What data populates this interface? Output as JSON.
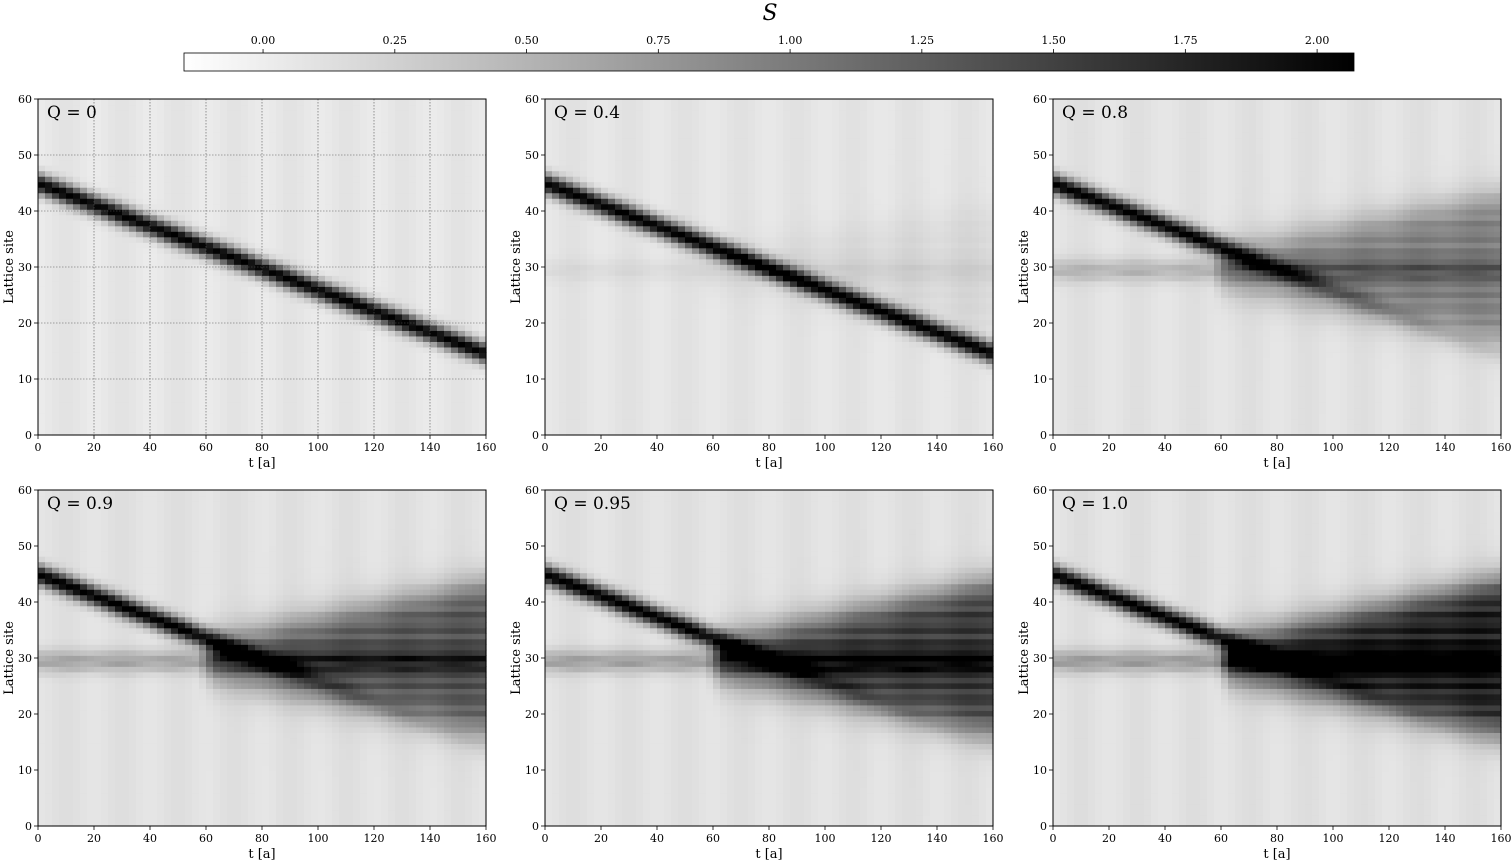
{
  "colorbar": {
    "label": "S",
    "ticks": [
      "0.00",
      "0.25",
      "0.50",
      "0.75",
      "1.00",
      "1.25",
      "1.50",
      "1.75",
      "2.00"
    ],
    "range": [
      -0.15,
      2.07
    ],
    "colors": [
      "#ffffff",
      "#000000"
    ]
  },
  "chart_data": [
    {
      "type": "heatmap",
      "title": "Q = 0",
      "q": 0,
      "xlabel": "t [a]",
      "ylabel": "Lattice site",
      "xlim": [
        0,
        160
      ],
      "ylim": [
        0,
        60
      ],
      "xticks": [
        "0",
        "20",
        "40",
        "60",
        "80",
        "100",
        "120",
        "140",
        "160"
      ],
      "yticks": [
        "0",
        "10",
        "20",
        "30",
        "40",
        "50",
        "60"
      ],
      "grid": true,
      "features": {
        "wavepacket_start_site": 45,
        "wavepacket_end_site": 15,
        "wavepacket_peak_S": 2.0,
        "impurity_site": 30
      }
    },
    {
      "type": "heatmap",
      "title": "Q = 0.4",
      "q": 0.4,
      "xlabel": "t [a]",
      "ylabel": "Lattice site",
      "xlim": [
        0,
        160
      ],
      "ylim": [
        0,
        60
      ],
      "xticks": [
        "0",
        "20",
        "40",
        "60",
        "80",
        "100",
        "120",
        "140",
        "160"
      ],
      "yticks": [
        "0",
        "10",
        "20",
        "30",
        "40",
        "50",
        "60"
      ],
      "grid": false,
      "features": {
        "wavepacket_start_site": 45,
        "wavepacket_end_site": 15,
        "wavepacket_peak_S": 2.0,
        "impurity_site": 30
      }
    },
    {
      "type": "heatmap",
      "title": "Q = 0.8",
      "q": 0.8,
      "xlabel": "t [a]",
      "ylabel": "Lattice site",
      "xlim": [
        0,
        160
      ],
      "ylim": [
        0,
        60
      ],
      "xticks": [
        "0",
        "20",
        "40",
        "60",
        "80",
        "100",
        "120",
        "140",
        "160"
      ],
      "yticks": [
        "0",
        "10",
        "20",
        "30",
        "40",
        "50",
        "60"
      ],
      "grid": false,
      "features": {
        "wavepacket_start_site": 45,
        "collision_time": 60,
        "impurity_site": 30
      }
    },
    {
      "type": "heatmap",
      "title": "Q = 0.9",
      "q": 0.9,
      "xlabel": "t [a]",
      "ylabel": "Lattice site",
      "xlim": [
        0,
        160
      ],
      "ylim": [
        0,
        60
      ],
      "xticks": [
        "0",
        "20",
        "40",
        "60",
        "80",
        "100",
        "120",
        "140",
        "160"
      ],
      "yticks": [
        "0",
        "10",
        "20",
        "30",
        "40",
        "50",
        "60"
      ],
      "grid": false,
      "features": {
        "wavepacket_start_site": 45,
        "collision_time": 60,
        "impurity_site": 30
      }
    },
    {
      "type": "heatmap",
      "title": "Q = 0.95",
      "q": 0.95,
      "xlabel": "t [a]",
      "ylabel": "Lattice site",
      "xlim": [
        0,
        160
      ],
      "ylim": [
        0,
        60
      ],
      "xticks": [
        "0",
        "20",
        "40",
        "60",
        "80",
        "100",
        "120",
        "140",
        "160"
      ],
      "yticks": [
        "0",
        "10",
        "20",
        "30",
        "40",
        "50",
        "60"
      ],
      "grid": false,
      "features": {
        "wavepacket_start_site": 45,
        "collision_time": 60,
        "impurity_site": 30
      }
    },
    {
      "type": "heatmap",
      "title": "Q = 1.0",
      "q": 1.0,
      "xlabel": "t [a]",
      "ylabel": "Lattice site",
      "xlim": [
        0,
        160
      ],
      "ylim": [
        0,
        60
      ],
      "xticks": [
        "0",
        "20",
        "40",
        "60",
        "80",
        "100",
        "120",
        "140",
        "160"
      ],
      "yticks": [
        "0",
        "10",
        "20",
        "30",
        "40",
        "50",
        "60"
      ],
      "grid": false,
      "features": {
        "wavepacket_start_site": 45,
        "collision_time": 60,
        "impurity_site": 30
      }
    }
  ]
}
